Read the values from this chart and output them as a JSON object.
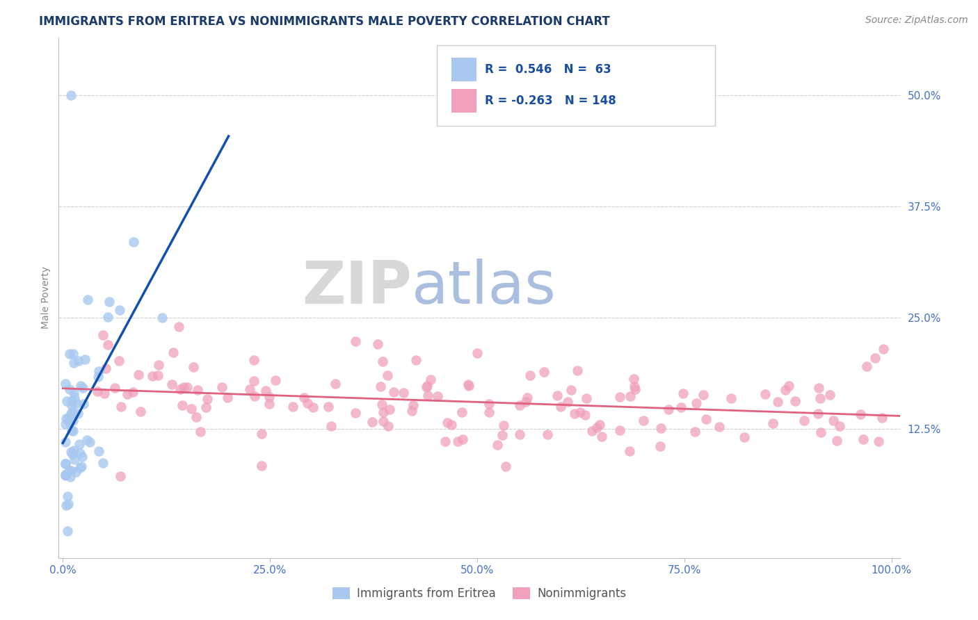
{
  "title": "IMMIGRANTS FROM ERITREA VS NONIMMIGRANTS MALE POVERTY CORRELATION CHART",
  "source": "Source: ZipAtlas.com",
  "ylabel": "Male Poverty",
  "R_blue": 0.546,
  "N_blue": 63,
  "R_pink": -0.263,
  "N_pink": 148,
  "legend_label_blue": "Immigrants from Eritrea",
  "legend_label_pink": "Nonimmigrants",
  "color_blue": "#a8c8f0",
  "color_pink": "#f0a0b8",
  "line_color_blue": "#1050b0",
  "line_color_pink": "#e06080",
  "watermark_zip": "ZIP",
  "watermark_atlas": "atlas",
  "title_color": "#1a3a6b",
  "stat_color": "#1a4fa0",
  "axis_color": "#4472c4",
  "tick_color": "#4472c4"
}
